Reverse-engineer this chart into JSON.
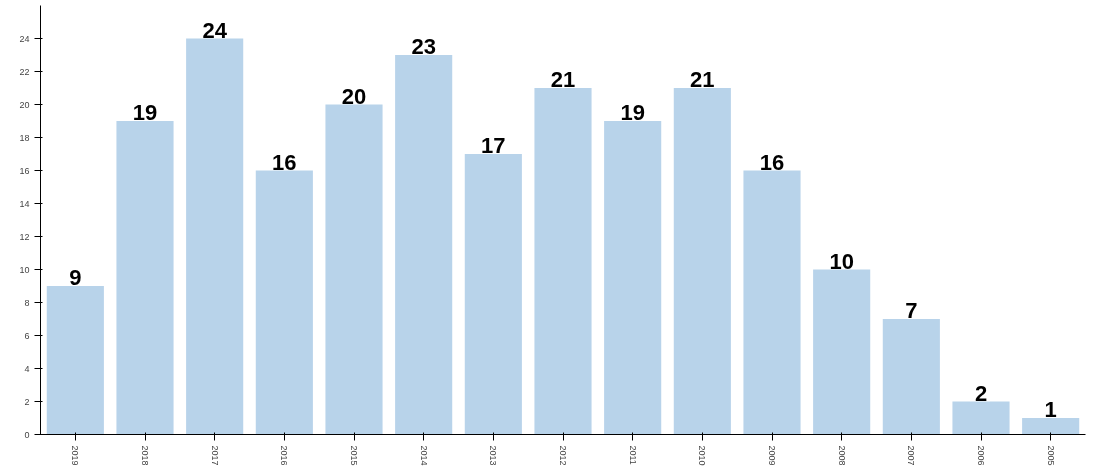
{
  "chart_data": {
    "type": "bar",
    "categories": [
      "2019",
      "2018",
      "2017",
      "2016",
      "2015",
      "2014",
      "2013",
      "2012",
      "2011",
      "2010",
      "2009",
      "2008",
      "2007",
      "2006",
      "2005"
    ],
    "values": [
      9,
      19,
      24,
      16,
      20,
      23,
      17,
      21,
      19,
      21,
      16,
      10,
      7,
      2,
      1
    ],
    "color": "#b8d3ea",
    "ylim": [
      0,
      26
    ],
    "yticks": [
      0,
      2,
      4,
      6,
      8,
      10,
      12,
      14,
      16,
      18,
      20,
      22,
      24
    ],
    "data_labels": true,
    "grid": false
  }
}
